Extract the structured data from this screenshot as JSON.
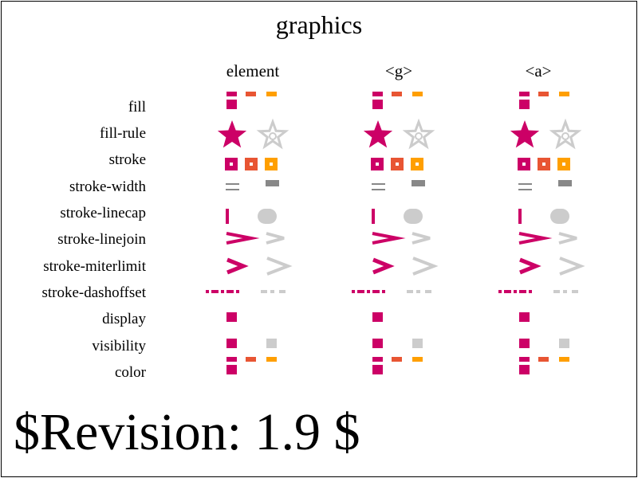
{
  "title": "graphics",
  "columns": [
    "element",
    "<g>",
    "<a>"
  ],
  "rows": [
    "fill",
    "fill-rule",
    "stroke",
    "stroke-width",
    "stroke-linecap",
    "stroke-linejoin",
    "stroke-miterlimit",
    "stroke-dashoffset",
    "display",
    "visibility",
    "color"
  ],
  "revision": "$Revision: 1.9 $",
  "colors": {
    "magenta": "#cc0066",
    "orange_red": "#e85533",
    "orange": "#ff9f00",
    "light_gray": "#cccccc",
    "gray": "#888888"
  }
}
